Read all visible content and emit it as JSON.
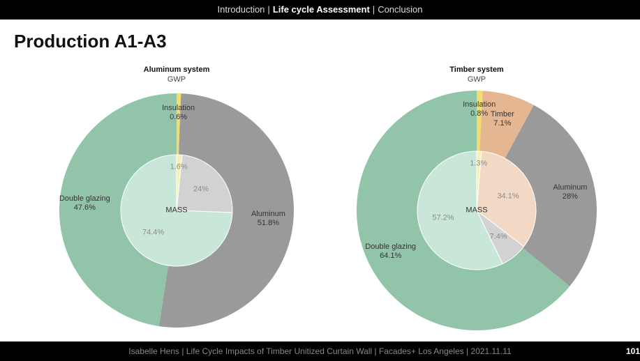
{
  "header": {
    "items": [
      "Introduction",
      "Life cycle Assessment",
      "Conclusion"
    ],
    "separator": "|",
    "current": 1
  },
  "heading": "Production A1-A3",
  "chart_data": [
    {
      "type": "pie",
      "title": "Aluminum system",
      "series": [
        {
          "name": "GWP",
          "categories": [
            "Insulation",
            "Aluminum",
            "Double glazing"
          ],
          "values": [
            0.6,
            51.8,
            47.6
          ],
          "value_labels": [
            "0.6%",
            "51.8%",
            "47.6%"
          ],
          "colors": [
            "#f0de72",
            "#9a9a9a",
            "#92c4aa"
          ]
        },
        {
          "name": "MASS",
          "values": [
            1.6,
            24,
            74.4
          ],
          "value_labels": [
            "1.6%",
            "24%",
            "74.4%"
          ],
          "colors": [
            "#f6f0b4",
            "#d2d2d2",
            "#c9e7d8"
          ]
        }
      ]
    },
    {
      "type": "pie",
      "title": "Timber system",
      "series": [
        {
          "name": "GWP",
          "categories": [
            "Insulation",
            "Timber",
            "Aluminum",
            "Double glazing"
          ],
          "values": [
            0.8,
            7.1,
            28,
            64.1
          ],
          "value_labels": [
            "0.8%",
            "7.1%",
            "28%",
            "64.1%"
          ],
          "colors": [
            "#f0de72",
            "#e5b692",
            "#9a9a9a",
            "#92c4aa"
          ]
        },
        {
          "name": "MASS",
          "values": [
            1.3,
            34.1,
            7.4,
            57.2
          ],
          "value_labels": [
            "1.3%",
            "34.1%",
            "7.4%",
            "57.2%"
          ],
          "colors": [
            "#f6f0b4",
            "#f1d9c6",
            "#d2d2d2",
            "#c9e7d8"
          ]
        }
      ]
    }
  ],
  "footer": {
    "text": "Isabelle Hens | Life Cycle Impacts of Timber Unitized Curtain Wall | Facades+ Los Angeles | 2021.11.11",
    "page": "101"
  }
}
